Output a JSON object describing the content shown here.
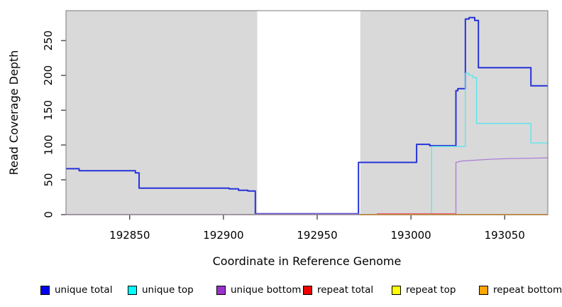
{
  "chart_data": {
    "type": "line",
    "title": "",
    "xlabel": "Coordinate in Reference Genome",
    "ylabel": "Read Coverage Depth",
    "xlim": [
      192816,
      193073
    ],
    "ylim": [
      0,
      293
    ],
    "x_ticks": [
      192850,
      192900,
      192950,
      193000,
      193050
    ],
    "y_ticks": [
      0,
      50,
      100,
      150,
      200,
      250
    ],
    "grid": false,
    "legend_position": "bottom",
    "plot_background": "#ffffff",
    "shaded_band_color": "#d9d9d9",
    "box_color": "#7a7a7a",
    "shaded_bands": [
      [
        192816,
        192918
      ],
      [
        192973,
        193073
      ]
    ],
    "series": [
      {
        "name": "unique total",
        "line_color": "#2633d9",
        "legend_color": "#0000ee",
        "line_width": 2,
        "points": [
          [
            192816,
            66
          ],
          [
            192823,
            66
          ],
          [
            192823,
            63
          ],
          [
            192853,
            63
          ],
          [
            192853,
            60
          ],
          [
            192855,
            60
          ],
          [
            192855,
            38
          ],
          [
            192903,
            38
          ],
          [
            192903,
            37
          ],
          [
            192908,
            37
          ],
          [
            192908,
            35
          ],
          [
            192913,
            35
          ],
          [
            192913,
            34
          ],
          [
            192917,
            34
          ],
          [
            192917,
            1.2
          ],
          [
            192972,
            1.2
          ],
          [
            192972,
            75
          ],
          [
            193003,
            75
          ],
          [
            193003,
            101
          ],
          [
            193010,
            101
          ],
          [
            193010,
            99
          ],
          [
            193024,
            99
          ],
          [
            193024,
            178
          ],
          [
            193025,
            178
          ],
          [
            193025,
            181
          ],
          [
            193029,
            181
          ],
          [
            193029,
            281
          ],
          [
            193031,
            281
          ],
          [
            193031,
            283
          ],
          [
            193034,
            283
          ],
          [
            193034,
            279
          ],
          [
            193036,
            279
          ],
          [
            193036,
            211
          ],
          [
            193064,
            211
          ],
          [
            193064,
            185
          ],
          [
            193073,
            185
          ]
        ]
      },
      {
        "name": "unique top",
        "line_color": "#55e6ec",
        "legend_color": "#00ffff",
        "line_width": 1.3,
        "points": [
          [
            192816,
            0
          ],
          [
            193011,
            0
          ],
          [
            193011,
            98
          ],
          [
            193029,
            98
          ],
          [
            193029,
            203
          ],
          [
            193031,
            203
          ],
          [
            193031,
            200
          ],
          [
            193033,
            200
          ],
          [
            193033,
            197
          ],
          [
            193035,
            197
          ],
          [
            193035,
            131
          ],
          [
            193064,
            131
          ],
          [
            193064,
            103
          ],
          [
            193073,
            103
          ]
        ]
      },
      {
        "name": "unique bottom",
        "line_color": "#ac7cd6",
        "legend_color": "#9932cc",
        "line_width": 1.3,
        "points": [
          [
            192816,
            0
          ],
          [
            192917,
            0
          ],
          [
            192917,
            0.8
          ],
          [
            192972,
            0.8
          ],
          [
            192972,
            0
          ],
          [
            193024,
            0
          ],
          [
            193024,
            75
          ],
          [
            193027,
            77
          ],
          [
            193033,
            78
          ],
          [
            193042,
            79.5
          ],
          [
            193052,
            80.5
          ],
          [
            193073,
            81.5
          ]
        ]
      },
      {
        "name": "repeat total",
        "line_color": "#ef607a",
        "legend_color": "#ee0000",
        "line_width": 1.3,
        "points": [
          [
            192816,
            0
          ],
          [
            192982,
            0
          ],
          [
            192982,
            1.3
          ],
          [
            193024,
            1.3
          ],
          [
            193024,
            0
          ],
          [
            193073,
            0
          ]
        ]
      },
      {
        "name": "repeat top",
        "line_color": "#ffff33",
        "legend_color": "#ffff00",
        "line_width": 1.3,
        "points": [
          [
            192973,
            0
          ],
          [
            193073,
            0
          ]
        ]
      },
      {
        "name": "repeat bottom",
        "line_color": "#f9a227",
        "legend_color": "#ffa500",
        "line_width": 2,
        "points": [
          [
            192973,
            0
          ],
          [
            193073,
            0
          ]
        ]
      }
    ]
  }
}
